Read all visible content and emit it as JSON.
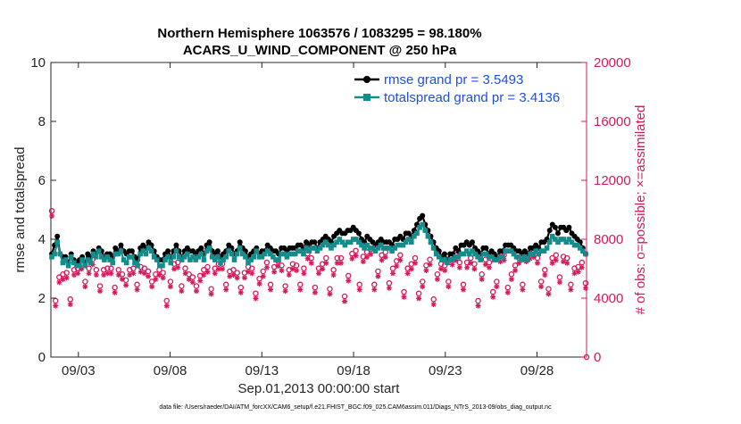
{
  "chart_data": {
    "type": "line",
    "title_line1": "Northern Hemisphere 1063576 / 1083295 = 98.180%",
    "title_line2": "ACARS_U_WIND_COMPONENT @ 250 hPa",
    "xlabel": "Sep.01,2013 00:00:00 start",
    "ylabel_left": "rmse and totalspread",
    "ylabel_right": "# of obs: o=possible; ×=assimilated",
    "footnote": "data file: /Users/raeder/DAI/ATM_forcXX/CAM6_setup/f.e21.FHIST_BGC.f09_025.CAM6assim.011/Diags_NTrS_2013-09/obs_diag_output.nc",
    "xlim": [
      1.5,
      30.7
    ],
    "ylim_left": [
      0,
      10
    ],
    "ylim_right": [
      0,
      20000
    ],
    "x_ticks": [
      3,
      8,
      13,
      18,
      23,
      28
    ],
    "x_tick_labels": [
      "09/03",
      "09/08",
      "09/13",
      "09/18",
      "09/23",
      "09/28"
    ],
    "y_left_ticks": [
      "0",
      "2",
      "4",
      "6",
      "8",
      "10"
    ],
    "y_right_ticks": [
      "0",
      "4000",
      "8000",
      "12000",
      "16000",
      "20000"
    ],
    "legend": [
      "rmse grand pr = 3.5493",
      "totalspread grand pr = 3.4136"
    ],
    "colors": {
      "rmse": "#000000",
      "spread": "#148c8c",
      "obs": "#d6195a",
      "legend_text": "#1f4fe0"
    },
    "series": [
      {
        "name": "rmse",
        "values": [
          3.5,
          3.8,
          4.1,
          3.5,
          3.4,
          3.4,
          3.2,
          3.5,
          3.3,
          3.2,
          3.3,
          3.4,
          3.2,
          3.5,
          3.4,
          3.6,
          3.5,
          3.7,
          3.6,
          3.4,
          3.5,
          3.5,
          3.4,
          3.7,
          3.6,
          3.8,
          3.6,
          3.5,
          3.6,
          3.6,
          3.4,
          3.3,
          3.7,
          3.8,
          3.7,
          3.9,
          3.8,
          3.6,
          3.4,
          3.3,
          3.3,
          3.5,
          3.6,
          3.4,
          3.6,
          3.8,
          3.6,
          3.4,
          3.6,
          3.7,
          3.6,
          3.6,
          3.5,
          3.6,
          3.7,
          3.5,
          3.8,
          3.9,
          3.6,
          3.5,
          3.6,
          3.4,
          3.5,
          3.6,
          3.8,
          3.7,
          3.5,
          3.6,
          3.9,
          3.7,
          3.6,
          3.4,
          3.5,
          3.6,
          3.7,
          3.5,
          3.6,
          3.6,
          3.8,
          3.7,
          3.6,
          3.6,
          3.5,
          3.7,
          3.7,
          3.6,
          3.7,
          3.7,
          3.7,
          3.8,
          3.8,
          3.7,
          3.9,
          3.8,
          3.9,
          3.9,
          3.7,
          3.9,
          4.0,
          4.1,
          4.0,
          3.9,
          4.1,
          4.2,
          4.3,
          4.2,
          4.2,
          4.3,
          4.3,
          4.4,
          4.3,
          4.2,
          4.0,
          3.9,
          4.1,
          4.0,
          3.9,
          3.8,
          3.9,
          4.0,
          3.9,
          3.9,
          3.9,
          3.8,
          4.0,
          4.0,
          4.1,
          4.0,
          4.2,
          4.2,
          4.1,
          4.3,
          4.5,
          4.7,
          4.8,
          4.5,
          4.3,
          4.1,
          3.9,
          3.7,
          3.6,
          3.4,
          3.5,
          3.3,
          3.5,
          3.5,
          3.7,
          3.6,
          3.8,
          3.8,
          3.9,
          3.8,
          3.9,
          3.7,
          3.6,
          3.5,
          3.7,
          3.7,
          3.5,
          3.6,
          3.5,
          3.4,
          3.6,
          3.6,
          3.8,
          3.8,
          3.8,
          3.7,
          3.6,
          3.6,
          3.5,
          3.6,
          3.5,
          3.7,
          3.7,
          3.8,
          3.7,
          3.9,
          3.9,
          4.0,
          4.3,
          4.5,
          4.4,
          4.2,
          4.4,
          4.4,
          4.3,
          4.4,
          4.2,
          4.1,
          4.0,
          3.9,
          3.7,
          3.5
        ]
      },
      {
        "name": "totalspread",
        "values": [
          3.4,
          3.5,
          3.9,
          3.5,
          3.2,
          3.3,
          3.1,
          3.4,
          3.2,
          3.1,
          3.1,
          3.3,
          3.1,
          3.3,
          3.2,
          3.5,
          3.4,
          3.6,
          3.4,
          3.3,
          3.4,
          3.3,
          3.2,
          3.5,
          3.5,
          3.6,
          3.3,
          3.2,
          3.4,
          3.4,
          3.2,
          3.1,
          3.5,
          3.6,
          3.5,
          3.7,
          3.6,
          3.4,
          3.3,
          3.1,
          3.1,
          3.3,
          3.4,
          3.2,
          3.4,
          3.6,
          3.4,
          3.3,
          3.4,
          3.5,
          3.3,
          3.4,
          3.3,
          3.4,
          3.5,
          3.3,
          3.6,
          3.7,
          3.4,
          3.3,
          3.4,
          3.2,
          3.3,
          3.4,
          3.6,
          3.5,
          3.3,
          3.5,
          3.7,
          3.5,
          3.4,
          3.2,
          3.3,
          3.4,
          3.6,
          3.4,
          3.4,
          3.5,
          3.6,
          3.5,
          3.4,
          3.3,
          3.3,
          3.5,
          3.5,
          3.4,
          3.5,
          3.5,
          3.5,
          3.6,
          3.6,
          3.5,
          3.7,
          3.6,
          3.7,
          3.7,
          3.6,
          3.7,
          3.8,
          3.9,
          3.8,
          3.7,
          3.8,
          3.9,
          4.0,
          3.9,
          3.8,
          3.9,
          3.9,
          4.0,
          4.0,
          3.9,
          3.8,
          3.7,
          3.8,
          3.7,
          3.7,
          3.6,
          3.7,
          3.8,
          3.7,
          3.7,
          3.7,
          3.6,
          3.7,
          3.8,
          3.8,
          3.8,
          3.9,
          4.0,
          3.9,
          4.1,
          4.2,
          4.4,
          4.5,
          4.3,
          4.1,
          3.9,
          3.7,
          3.5,
          3.4,
          3.3,
          3.3,
          3.2,
          3.3,
          3.3,
          3.4,
          3.4,
          3.5,
          3.5,
          3.6,
          3.5,
          3.6,
          3.5,
          3.4,
          3.3,
          3.5,
          3.5,
          3.4,
          3.4,
          3.3,
          3.3,
          3.4,
          3.4,
          3.6,
          3.6,
          3.6,
          3.5,
          3.4,
          3.4,
          3.3,
          3.4,
          3.3,
          3.5,
          3.5,
          3.6,
          3.5,
          3.6,
          3.6,
          3.7,
          3.9,
          4.1,
          4.0,
          3.9,
          4.0,
          4.0,
          3.9,
          4.0,
          3.9,
          3.8,
          3.8,
          3.7,
          3.6,
          3.5
        ]
      },
      {
        "name": "obs_possible",
        "values": [
          9800,
          3700,
          5300,
          5500,
          5600,
          3800,
          5800,
          5900,
          6200,
          5000,
          5900,
          6500,
          5800,
          4700,
          5800,
          5900,
          5900,
          4600,
          5800,
          5500,
          5100,
          5800,
          5900,
          4800,
          6000,
          5900,
          5700,
          5000,
          5500,
          5800,
          5600,
          3700,
          5000,
          6200,
          6300,
          4700,
          5900,
          5500,
          5300,
          4700,
          5400,
          5800,
          6000,
          4500,
          5900,
          6200,
          6200,
          4800,
          5700,
          5800,
          5600,
          4600,
          5600,
          6000,
          5900,
          4200,
          5200,
          5700,
          6300,
          4800,
          6000,
          6400,
          6100,
          4700,
          5800,
          6200,
          6100,
          4800,
          5900,
          6900,
          6600,
          4600,
          5900,
          6200,
          6600,
          4500,
          5800,
          6600,
          6600,
          4000,
          5400,
          6900,
          7100,
          4800,
          6700,
          7000,
          7200,
          4800,
          5700,
          6800,
          7000,
          4900,
          5900,
          6400,
          6800,
          4300,
          5900,
          6200,
          6600,
          4200,
          5000,
          6100,
          6500,
          3800,
          5500,
          6200,
          6100,
          5000,
          6500,
          6800,
          6300,
          4800,
          6300,
          6600,
          6200,
          3700,
          5500,
          6500,
          6300,
          4300,
          5000,
          6700,
          6800,
          4600,
          5500,
          6100,
          6600,
          4800,
          6700,
          6900,
          7000,
          6600,
          5000,
          5800,
          4500,
          6600,
          6800,
          5300,
          6700,
          6600,
          4800,
          5900,
          6000,
          6300,
          4900
        ],
        "note": "open-circle markers; y in right-axis units (# of obs)"
      },
      {
        "name": "obs_assimilated",
        "values": [
          9700,
          3600,
          5200,
          5400,
          5500,
          3700,
          5700,
          5800,
          6100,
          4900,
          5800,
          6400,
          5700,
          4600,
          5700,
          5800,
          5800,
          4500,
          5700,
          5400,
          5000,
          5700,
          5800,
          4700,
          5900,
          5800,
          5600,
          4900,
          5400,
          5700,
          5500,
          3600,
          4900,
          6100,
          6200,
          4600,
          5800,
          5400,
          5200,
          4600,
          5300,
          5700,
          5900,
          4400,
          5800,
          6100,
          6100,
          4700,
          5600,
          5700,
          5500,
          4500,
          5500,
          5900,
          5800,
          4100,
          5100,
          5600,
          6200,
          4700,
          5900,
          6300,
          6000,
          4600,
          5700,
          6100,
          6000,
          4700,
          5800,
          6800,
          6500,
          4500,
          5800,
          6100,
          6500,
          4400,
          5700,
          6500,
          6500,
          3900,
          5300,
          6800,
          7000,
          4700,
          6600,
          6900,
          7100,
          4700,
          5600,
          6700,
          6900,
          4800,
          5800,
          6300,
          6700,
          4200,
          5800,
          6100,
          6500,
          4100,
          4900,
          6000,
          6400,
          3700,
          5400,
          6100,
          6000,
          4900,
          6400,
          6700,
          6200,
          4700,
          6200,
          6500,
          6100,
          3600,
          5400,
          6400,
          6200,
          4200,
          4900,
          6600,
          6700,
          4500,
          5400,
          6000,
          6500,
          4700,
          6600,
          6800,
          6900,
          6500,
          4900,
          5700,
          4400,
          6500,
          6700,
          5200,
          6600,
          6500,
          4700,
          5800,
          5900,
          6200,
          4800
        ],
        "note": "asterisk markers; y in right-axis units (# of obs)"
      }
    ]
  }
}
